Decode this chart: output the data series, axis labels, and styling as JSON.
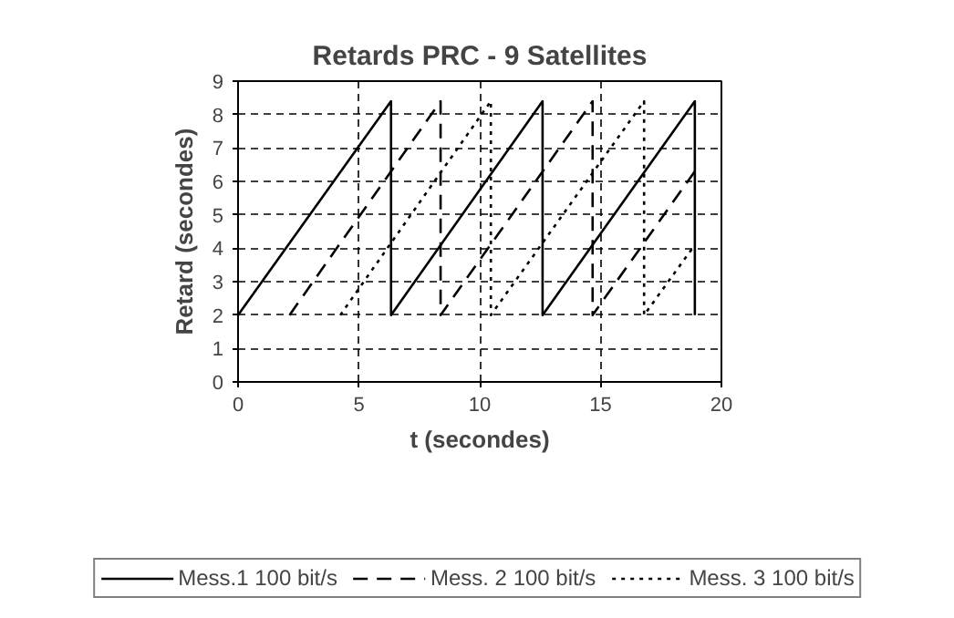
{
  "chart_data": {
    "type": "line",
    "title": "Retards PRC - 9 Satellites",
    "xlabel": "t (secondes)",
    "ylabel": "Retard (secondes)",
    "xlim": [
      0,
      20
    ],
    "ylim": [
      0,
      9
    ],
    "xticks": [
      0,
      5,
      10,
      15,
      20
    ],
    "yticks": [
      0,
      1,
      2,
      3,
      4,
      5,
      6,
      7,
      8,
      9
    ],
    "grid": true,
    "legend": "bottom",
    "marker": "none",
    "series": [
      {
        "name": "Mess.1 100 bit/s",
        "color": "#000000",
        "line_style": "solid",
        "x": [
          0,
          6.33,
          6.33,
          12.6,
          12.6,
          18.9,
          18.9
        ],
        "values": [
          2,
          8.4,
          2,
          8.4,
          2,
          8.4,
          2
        ]
      },
      {
        "name": "Mess. 2 100 bit/s",
        "color": "#000000",
        "line_style": "dashed",
        "x": [
          2.13,
          8.38,
          8.38,
          14.67,
          14.67,
          18.9
        ],
        "values": [
          2,
          8.4,
          2,
          8.4,
          2,
          6.3
        ]
      },
      {
        "name": "Mess. 3 100 bit/s",
        "color": "#000000",
        "line_style": "dotted",
        "x": [
          4.23,
          10.46,
          10.46,
          16.8,
          16.8,
          18.9
        ],
        "values": [
          2,
          8.4,
          2,
          8.4,
          2,
          4.1
        ]
      }
    ]
  }
}
